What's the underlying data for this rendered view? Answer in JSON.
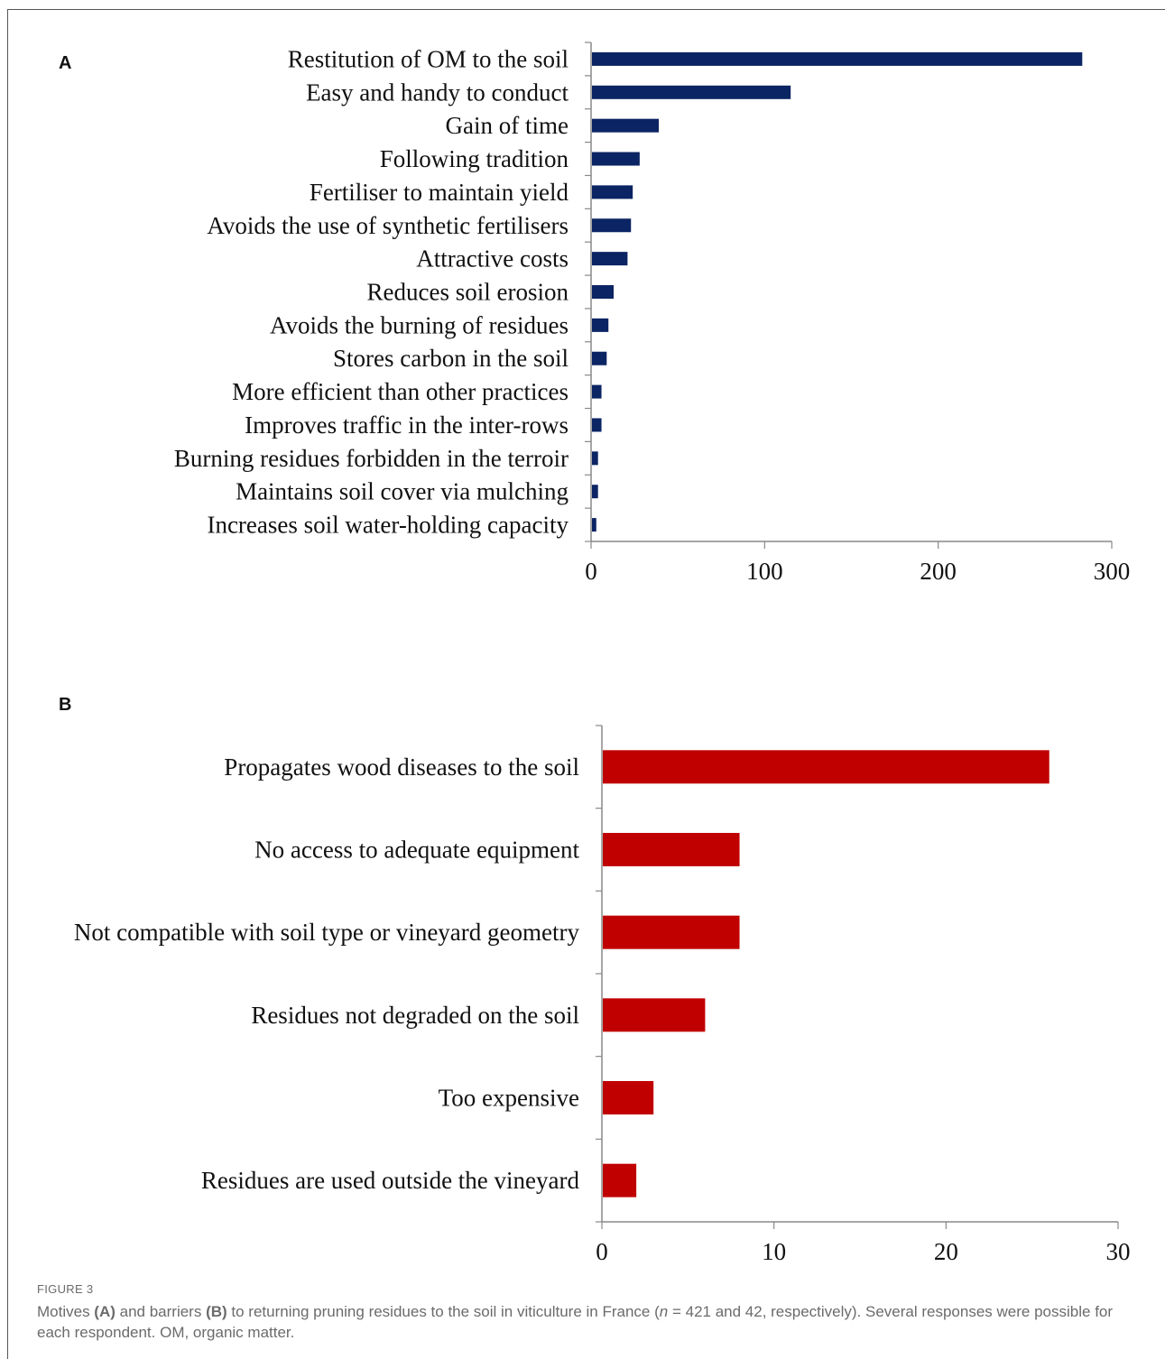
{
  "chart_data": [
    {
      "panel": "A",
      "type": "bar",
      "orientation": "horizontal",
      "color": "#0b2463",
      "categories": [
        "Restitution of OM to the soil",
        "Easy and handy to conduct",
        "Gain of time",
        "Following tradition",
        "Fertiliser to maintain yield",
        "Avoids the use of synthetic fertilisers",
        "Attractive costs",
        "Reduces soil erosion",
        "Avoids the burning of residues",
        "Stores carbon in the soil",
        "More efficient than other practices",
        "Improves traffic in the inter-rows",
        "Burning residues forbidden in the terroir",
        "Maintains soil cover via mulching",
        "Increases soil water-holding capacity"
      ],
      "values": [
        283,
        115,
        39,
        28,
        24,
        23,
        21,
        13,
        10,
        9,
        6,
        6,
        4,
        4,
        3
      ],
      "xlim": [
        0,
        300
      ],
      "xticks": [
        "0",
        "100",
        "200",
        "300"
      ],
      "grid": false
    },
    {
      "panel": "B",
      "type": "bar",
      "orientation": "horizontal",
      "color": "#c00000",
      "categories": [
        "Propagates wood diseases to the soil",
        "No access to adequate equipment",
        "Not compatible with soil type or vineyard geometry",
        "Residues not degraded on the soil",
        "Too expensive",
        "Residues are used outside the vineyard"
      ],
      "values": [
        26,
        8,
        8,
        6,
        3,
        2
      ],
      "xlim": [
        0,
        30
      ],
      "xticks": [
        "0",
        "10",
        "20",
        "30"
      ],
      "grid": false
    }
  ],
  "caption": {
    "figure_label": "FIGURE 3",
    "text_1": "Motives ",
    "a_label": "(A)",
    "text_2": " and barriers ",
    "b_label": "(B)",
    "text_3": " to returning pruning residues to the soil in viticulture in France (",
    "n_symbol": "n",
    "text_4": " = 421 and 42, respectively). Several responses were possible for each respondent. OM, organic matter."
  }
}
